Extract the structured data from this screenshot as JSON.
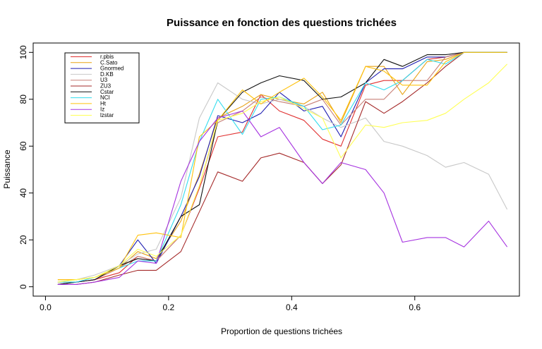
{
  "chart_data": {
    "type": "line",
    "title": "Puissance en fonction des questions trichées",
    "xlabel": "Proportion de questions trichées",
    "ylabel": "Puissance",
    "xlim": [
      -0.02,
      0.77
    ],
    "ylim": [
      -4,
      104
    ],
    "x_ticks": [
      0.0,
      0.2,
      0.4,
      0.6
    ],
    "x_tick_labels": [
      "0.0",
      "0.2",
      "0.4",
      "0.6"
    ],
    "y_ticks": [
      0,
      20,
      40,
      60,
      80,
      100
    ],
    "y_tick_labels": [
      "0",
      "20",
      "40",
      "60",
      "80",
      "100"
    ],
    "grid": false,
    "legend_position": "top-left",
    "x": [
      0.02,
      0.05,
      0.08,
      0.12,
      0.15,
      0.18,
      0.22,
      0.25,
      0.28,
      0.32,
      0.35,
      0.38,
      0.42,
      0.45,
      0.48,
      0.52,
      0.55,
      0.58,
      0.62,
      0.65,
      0.68,
      0.72,
      0.75
    ],
    "series": [
      {
        "name": "r.pbis",
        "color": "#e03131",
        "values": [
          2,
          2,
          3,
          6,
          13,
          11,
          22,
          42,
          64,
          66,
          82,
          75,
          71,
          63,
          60,
          86,
          88,
          88,
          97,
          98,
          100,
          100,
          100
        ]
      },
      {
        "name": "C.Sato",
        "color": "#e8a317",
        "values": [
          3,
          3,
          4,
          8,
          15,
          12,
          28,
          48,
          72,
          77,
          82,
          80,
          78,
          83,
          70,
          94,
          94,
          82,
          96,
          97,
          100,
          100,
          100
        ]
      },
      {
        "name": "Gnormed",
        "color": "#1c1cb0",
        "values": [
          1,
          2,
          3,
          9,
          20,
          10,
          30,
          47,
          73,
          70,
          74,
          83,
          75,
          77,
          64,
          87,
          93,
          93,
          98,
          98,
          100,
          100,
          100
        ]
      },
      {
        "name": "D.KB",
        "color": "#c8c8c8",
        "values": [
          2,
          3,
          5,
          9,
          14,
          16,
          38,
          72,
          87,
          80,
          78,
          80,
          77,
          72,
          68,
          72,
          62,
          60,
          56,
          51,
          53,
          48,
          33
        ]
      },
      {
        "name": "U3",
        "color": "#c88078",
        "values": [
          2,
          2,
          3,
          8,
          13,
          11,
          22,
          43,
          70,
          75,
          81,
          79,
          77,
          80,
          69,
          80,
          80,
          88,
          88,
          98,
          100,
          100,
          100
        ]
      },
      {
        "name": "ZU3",
        "color": "#a52a2a",
        "values": [
          1,
          1,
          2,
          5,
          7,
          7,
          15,
          32,
          49,
          45,
          55,
          57,
          53,
          44,
          52,
          79,
          74,
          79,
          87,
          94,
          100,
          100,
          100
        ]
      },
      {
        "name": "Cstar",
        "color": "#111111",
        "values": [
          1,
          2,
          3,
          9,
          12,
          11,
          30,
          35,
          71,
          83,
          87,
          90,
          88,
          80,
          81,
          87,
          97,
          94,
          99,
          99,
          100,
          100,
          100
        ]
      },
      {
        "name": "NCI",
        "color": "#33ddee",
        "values": [
          2,
          2,
          4,
          8,
          11,
          11,
          35,
          62,
          80,
          65,
          80,
          81,
          77,
          67,
          69,
          87,
          84,
          88,
          97,
          95,
          100,
          100,
          100
        ]
      },
      {
        "name": "Ht",
        "color": "#ffc20e",
        "values": [
          3,
          3,
          4,
          8,
          22,
          23,
          21,
          64,
          71,
          84,
          78,
          83,
          89,
          81,
          71,
          94,
          92,
          86,
          86,
          96,
          100,
          100,
          100
        ]
      },
      {
        "name": "Iz",
        "color": "#a633e0",
        "values": [
          1,
          1,
          2,
          4,
          11,
          10,
          45,
          62,
          72,
          75,
          64,
          68,
          53,
          44,
          53,
          50,
          40,
          19,
          21,
          21,
          17,
          28,
          17
        ]
      },
      {
        "name": "lzstar",
        "color": "#ffff55",
        "values": [
          2,
          3,
          4,
          9,
          16,
          13,
          22,
          43,
          71,
          74,
          79,
          81,
          76,
          72,
          55,
          69,
          68,
          70,
          71,
          74,
          80,
          87,
          95
        ]
      }
    ]
  }
}
